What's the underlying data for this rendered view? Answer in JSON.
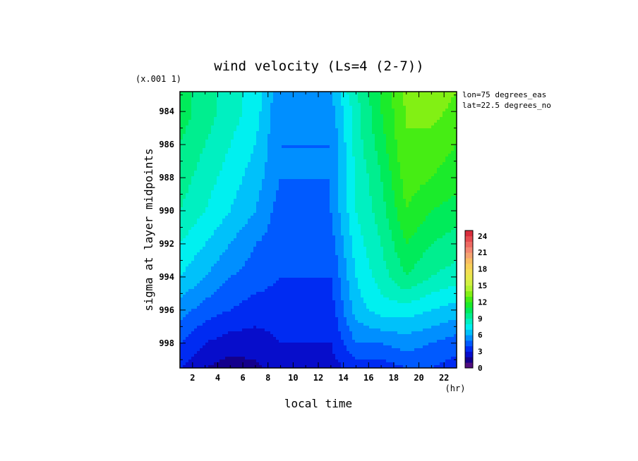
{
  "chart_data": {
    "type": "heatmap",
    "title": "wind velocity (Ls=4 (2-7))",
    "xlabel": "local time",
    "x_unit": "(hr)",
    "ylabel": "sigma at layer midpoints",
    "y_scale_note": "(x.001 1)",
    "annotations": [
      "lon=75 degrees_eas",
      "lat=22.5 degrees_no"
    ],
    "xlim": [
      1,
      23
    ],
    "ylim": [
      0.9995,
      0.9828
    ],
    "x_ticks": [
      2,
      4,
      6,
      8,
      10,
      12,
      14,
      16,
      18,
      20,
      22
    ],
    "y_ticks": [
      984,
      986,
      988,
      990,
      992,
      994,
      996,
      998
    ],
    "colorbar": {
      "min": 0,
      "max": 25,
      "step": 1,
      "tick_labels": [
        "0",
        "3",
        "6",
        "9",
        "12",
        "15",
        "18",
        "21",
        "24"
      ]
    },
    "x": [
      1,
      3,
      5,
      7,
      9,
      11,
      13,
      15,
      17,
      19,
      21,
      23
    ],
    "y": [
      0.9828,
      0.984,
      0.986,
      0.988,
      0.99,
      0.992,
      0.994,
      0.996,
      0.998,
      0.9995
    ],
    "z": [
      [
        10.5,
        9.5,
        8.5,
        7.5,
        5.5,
        5.5,
        6.0,
        9.0,
        11.0,
        13.5,
        14.0,
        13.0
      ],
      [
        10.5,
        9.5,
        8.5,
        7.5,
        5.0,
        5.0,
        5.5,
        8.5,
        11.0,
        13.0,
        13.5,
        12.5
      ],
      [
        10.0,
        9.0,
        8.0,
        7.0,
        5.0,
        5.0,
        5.0,
        8.5,
        10.5,
        13.0,
        12.5,
        12.0
      ],
      [
        9.5,
        8.5,
        7.5,
        6.5,
        5.0,
        5.0,
        5.0,
        8.0,
        10.0,
        12.5,
        12.0,
        11.5
      ],
      [
        9.0,
        8.0,
        7.0,
        6.0,
        4.5,
        4.5,
        5.0,
        8.0,
        9.5,
        12.0,
        11.0,
        10.5
      ],
      [
        8.0,
        7.0,
        6.0,
        5.0,
        4.5,
        4.0,
        4.5,
        7.5,
        9.0,
        11.0,
        10.0,
        9.5
      ],
      [
        7.0,
        6.0,
        5.0,
        4.5,
        4.0,
        4.0,
        4.0,
        7.0,
        8.5,
        10.0,
        9.0,
        8.5
      ],
      [
        5.5,
        4.5,
        4.0,
        3.5,
        3.5,
        3.5,
        3.5,
        6.5,
        7.5,
        7.5,
        7.0,
        6.5
      ],
      [
        4.0,
        3.0,
        2.5,
        2.5,
        3.0,
        3.0,
        3.0,
        5.0,
        5.0,
        5.5,
        5.0,
        4.5
      ],
      [
        3.0,
        2.0,
        1.5,
        1.8,
        2.5,
        2.5,
        2.5,
        3.5,
        3.5,
        4.0,
        4.0,
        3.5
      ]
    ]
  }
}
